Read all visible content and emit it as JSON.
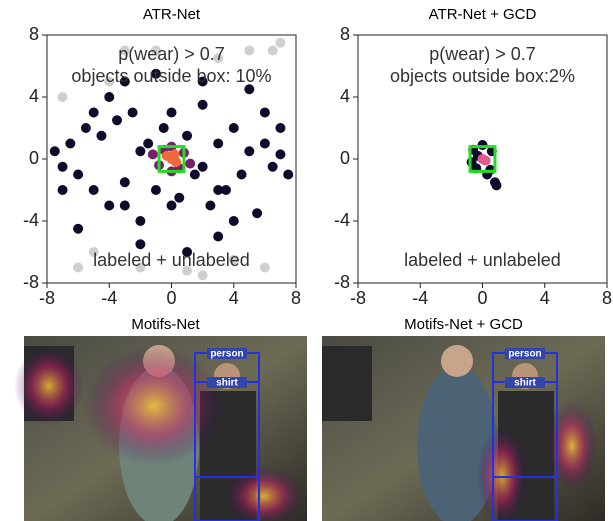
{
  "chart_data": [
    {
      "type": "scatter",
      "title": "ATR-Net",
      "annotations": [
        "p(wear) > 0.7",
        "objects outside box: 10%",
        "labeled + unlabeled"
      ],
      "xlim": [
        -8,
        8
      ],
      "ylim": [
        -8,
        8
      ],
      "xticks": [
        -8,
        -4,
        0,
        4,
        8
      ],
      "yticks": [
        -8,
        -4,
        0,
        4,
        8
      ],
      "box": [
        -0.8,
        0.8
      ],
      "box_color": "#22dd22",
      "series": [
        {
          "color": "#cfcfcf",
          "x": [
            -6,
            -4,
            -3,
            2,
            4,
            5,
            6.5,
            7,
            -7,
            -2,
            3,
            -5,
            1,
            6,
            -1
          ],
          "y": [
            -7,
            5,
            7,
            -7.5,
            -6.5,
            7,
            7,
            7.5,
            4,
            -7,
            6.5,
            -6,
            -7.2,
            -7,
            7
          ]
        },
        {
          "color": "#0e0b2a",
          "x": [
            -7.5,
            -7,
            -6.5,
            -6,
            -5.5,
            -5,
            -4.5,
            -4,
            -3.5,
            -3,
            -2.5,
            -2,
            -1.5,
            -1,
            -0.5,
            0.5,
            1,
            1.5,
            2,
            2.5,
            3,
            3.5,
            4,
            4.5,
            5,
            5.5,
            6,
            6.5,
            7,
            7.5,
            -6,
            -4,
            -2,
            2,
            4,
            6,
            -5,
            -3,
            3,
            5,
            -1,
            1,
            -2,
            2,
            0,
            0,
            -7,
            7,
            -3,
            3
          ],
          "y": [
            0.5,
            -0.5,
            1,
            -1,
            2,
            -2,
            1.5,
            -3,
            2.5,
            -1.5,
            3,
            -4,
            1,
            -2,
            2,
            -2.5,
            1.5,
            -1,
            3.5,
            -3,
            1,
            -2,
            2,
            -1,
            0.5,
            -3.5,
            1,
            -0.5,
            0.3,
            -1,
            -4.5,
            4,
            -5.5,
            5,
            -4,
            3,
            3,
            -3,
            -5,
            4.5,
            5.5,
            -6,
            0.5,
            -0.5,
            3,
            -3,
            -2,
            2,
            5,
            -2
          ]
        },
        {
          "color": "#7a1f6a",
          "x": [
            -1.2,
            -0.8,
            0.8,
            1.2,
            -0.5,
            0.5,
            0,
            0
          ],
          "y": [
            0.3,
            -0.4,
            0.4,
            -0.3,
            0.6,
            -0.6,
            0.8,
            -0.8
          ]
        },
        {
          "color": "#ee6a3c",
          "x": [
            -0.3,
            0.3,
            0,
            0.2
          ],
          "y": [
            0.2,
            -0.2,
            0,
            0.3
          ]
        }
      ]
    },
    {
      "type": "scatter",
      "title": "ATR-Net + GCD",
      "annotations": [
        "p(wear) > 0.7",
        "objects outside box:2%",
        "labeled + unlabeled"
      ],
      "xlim": [
        -8,
        8
      ],
      "ylim": [
        -8,
        8
      ],
      "xticks": [
        -8,
        -4,
        0,
        4,
        8
      ],
      "yticks": [
        -8,
        -4,
        0,
        4,
        8
      ],
      "box": [
        -0.8,
        0.8
      ],
      "box_color": "#22dd22",
      "series": [
        {
          "color": "#0e0b2a",
          "x": [
            -0.6,
            0.6,
            -0.4,
            0.5,
            0,
            0.3,
            -0.3,
            0.8,
            -0.7,
            0.9
          ],
          "y": [
            0.6,
            0.5,
            -0.6,
            -0.7,
            0.9,
            -1.0,
            0.2,
            -1.5,
            -0.2,
            -1.7
          ]
        },
        {
          "color": "#e25a8a",
          "x": [
            0,
            0.2
          ],
          "y": [
            0,
            -0.1
          ]
        }
      ]
    }
  ],
  "images": [
    {
      "title": "Motifs-Net",
      "labels": [
        "person",
        "shirt"
      ]
    },
    {
      "title": "Motifs-Net + GCD",
      "labels": [
        "person",
        "shirt"
      ]
    }
  ]
}
